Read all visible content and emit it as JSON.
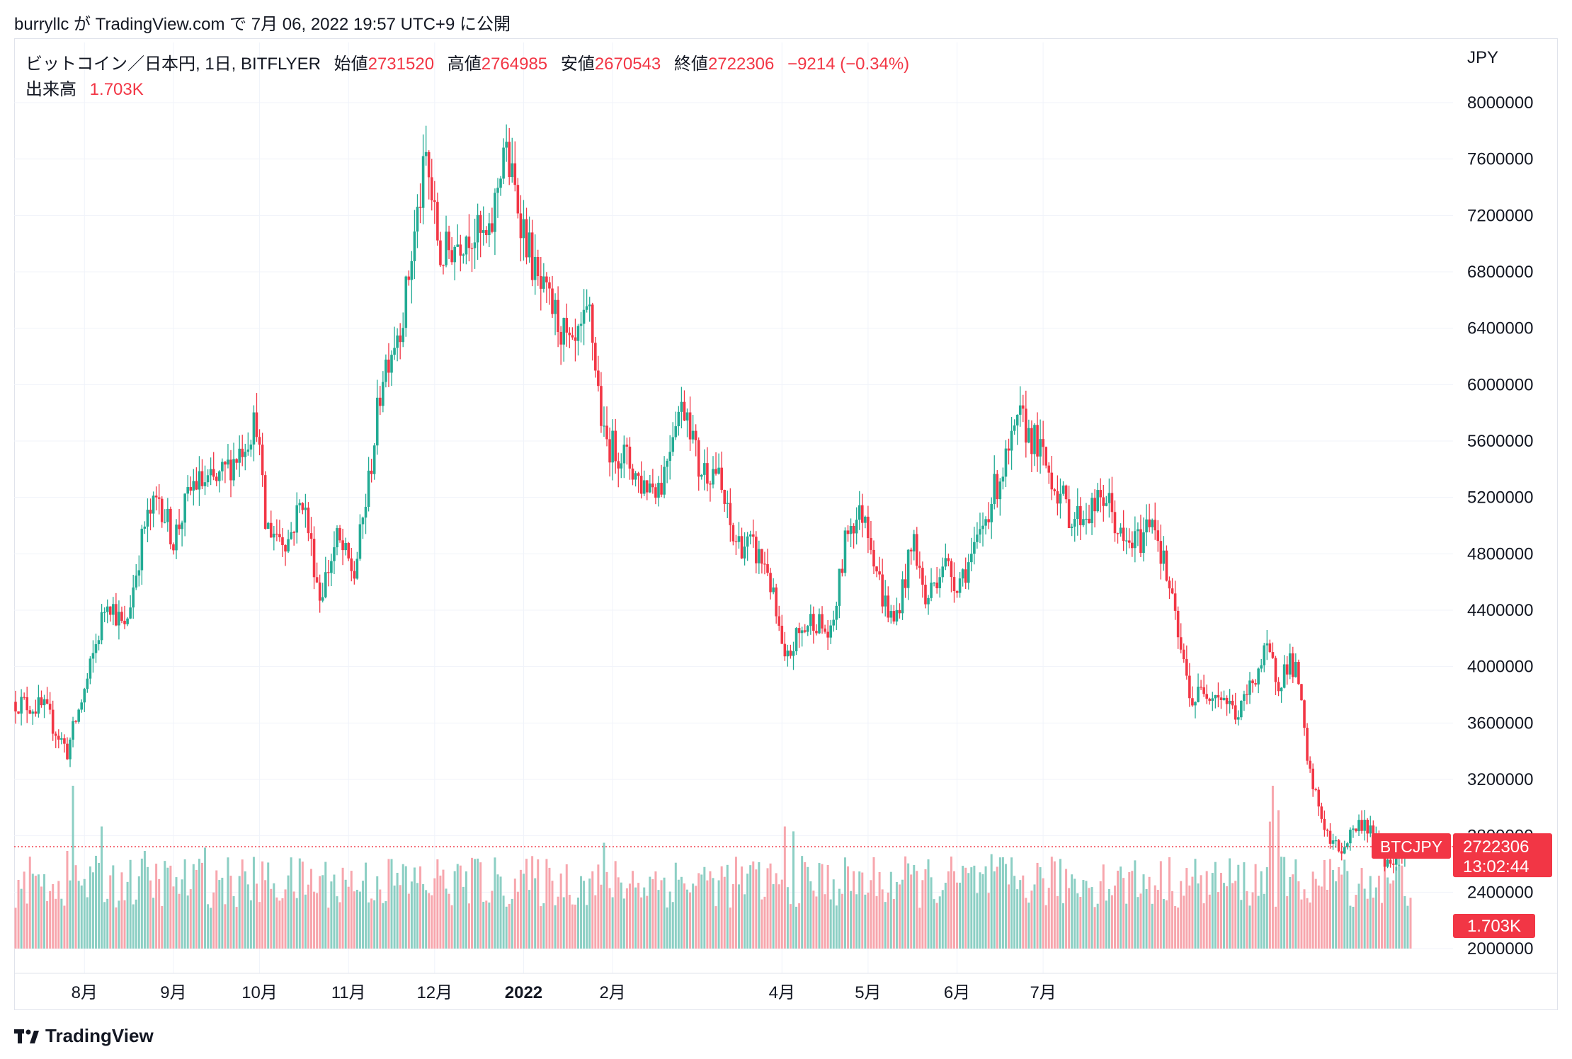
{
  "caption": "burryllc が TradingView.com で 7月 06, 2022 19:57 UTC+9 に公開",
  "legend": {
    "symbol": "ビットコイン／日本円, 1日, BITFLYER",
    "open_label": "始値",
    "open": "2731520",
    "high_label": "高値",
    "high": "2764985",
    "low_label": "安値",
    "low": "2670543",
    "close_label": "終値",
    "close": "2722306",
    "change": "−9214 (−0.34%)",
    "volume_label": "出来高",
    "volume": "1.703K"
  },
  "currency": "JPY",
  "price_tag": {
    "symbol": "BTCJPY",
    "price": "2722306",
    "countdown": "13:02:44"
  },
  "volume_tag": "1.703K",
  "footer_brand": "TradingView",
  "colors": {
    "up": "#22ab94",
    "down": "#f23645",
    "up_volume": "#8ccfc4",
    "down_volume": "#f7a6ad",
    "grid": "#f0f3fa"
  },
  "chart_data": {
    "type": "candlestick",
    "title": "ビットコイン／日本円, 1日, BITFLYER",
    "y_axis": {
      "unit": "JPY",
      "ylim": [
        1900000,
        8200000
      ],
      "ticks": [
        "8000000",
        "7600000",
        "7200000",
        "6800000",
        "6400000",
        "6000000",
        "5600000",
        "5200000",
        "4800000",
        "4400000",
        "4000000",
        "3600000",
        "3200000",
        "2800000",
        "2400000",
        "2000000"
      ]
    },
    "x_axis": {
      "ticks": [
        "8月",
        "9月",
        "10月",
        "11月",
        "12月",
        "2022",
        "2月",
        "4月",
        "5月",
        "6月",
        "7月"
      ]
    },
    "last_price": 2722306,
    "close_path": [
      {
        "d": 0,
        "close": 3750000
      },
      {
        "d": 10,
        "close": 3700000
      },
      {
        "d": 18,
        "close": 3400000
      },
      {
        "d": 25,
        "close": 3900000
      },
      {
        "d": 32,
        "close": 4500000
      },
      {
        "d": 38,
        "close": 4250000
      },
      {
        "d": 45,
        "close": 5000000
      },
      {
        "d": 50,
        "close": 5200000
      },
      {
        "d": 55,
        "close": 4900000
      },
      {
        "d": 62,
        "close": 5300000
      },
      {
        "d": 70,
        "close": 5300000
      },
      {
        "d": 77,
        "close": 5500000
      },
      {
        "d": 84,
        "close": 5750000
      },
      {
        "d": 87,
        "close": 5000000
      },
      {
        "d": 95,
        "close": 4900000
      },
      {
        "d": 100,
        "close": 5200000
      },
      {
        "d": 106,
        "close": 4500000
      },
      {
        "d": 112,
        "close": 4900000
      },
      {
        "d": 118,
        "close": 4650000
      },
      {
        "d": 123,
        "close": 5300000
      },
      {
        "d": 128,
        "close": 6100000
      },
      {
        "d": 135,
        "close": 6500000
      },
      {
        "d": 140,
        "close": 7200000
      },
      {
        "d": 143,
        "close": 7600000
      },
      {
        "d": 148,
        "close": 6900000
      },
      {
        "d": 153,
        "close": 7000000
      },
      {
        "d": 158,
        "close": 7100000
      },
      {
        "d": 165,
        "close": 7000000
      },
      {
        "d": 170,
        "close": 7700000
      },
      {
        "d": 176,
        "close": 7200000
      },
      {
        "d": 182,
        "close": 6700000
      },
      {
        "d": 188,
        "close": 6500000
      },
      {
        "d": 194,
        "close": 6200000
      },
      {
        "d": 200,
        "close": 6500000
      },
      {
        "d": 205,
        "close": 5600000
      },
      {
        "d": 212,
        "close": 5500000
      },
      {
        "d": 218,
        "close": 5300000
      },
      {
        "d": 225,
        "close": 5300000
      },
      {
        "d": 230,
        "close": 5800000
      },
      {
        "d": 234,
        "close": 5850000
      },
      {
        "d": 238,
        "close": 5400000
      },
      {
        "d": 244,
        "close": 5400000
      },
      {
        "d": 250,
        "close": 4900000
      },
      {
        "d": 256,
        "close": 4850000
      },
      {
        "d": 262,
        "close": 4700000
      },
      {
        "d": 268,
        "close": 4000000
      },
      {
        "d": 272,
        "close": 4200000
      },
      {
        "d": 278,
        "close": 4350000
      },
      {
        "d": 284,
        "close": 4200000
      },
      {
        "d": 290,
        "close": 5000000
      },
      {
        "d": 296,
        "close": 5100000
      },
      {
        "d": 302,
        "close": 4500000
      },
      {
        "d": 306,
        "close": 4300000
      },
      {
        "d": 313,
        "close": 4900000
      },
      {
        "d": 317,
        "close": 4450000
      },
      {
        "d": 323,
        "close": 4750000
      },
      {
        "d": 328,
        "close": 4600000
      },
      {
        "d": 334,
        "close": 4800000
      },
      {
        "d": 340,
        "close": 5200000
      },
      {
        "d": 346,
        "close": 5500000
      },
      {
        "d": 350,
        "close": 5750000
      },
      {
        "d": 355,
        "close": 5600000
      },
      {
        "d": 362,
        "close": 5300000
      },
      {
        "d": 368,
        "close": 5050000
      },
      {
        "d": 374,
        "close": 5100000
      },
      {
        "d": 380,
        "close": 5200000
      },
      {
        "d": 386,
        "close": 4850000
      },
      {
        "d": 392,
        "close": 4900000
      },
      {
        "d": 396,
        "close": 5100000
      },
      {
        "d": 402,
        "close": 4550000
      },
      {
        "d": 406,
        "close": 4100000
      },
      {
        "d": 410,
        "close": 3750000
      },
      {
        "d": 414,
        "close": 3850000
      },
      {
        "d": 420,
        "close": 3800000
      },
      {
        "d": 426,
        "close": 3650000
      },
      {
        "d": 432,
        "close": 3950000
      },
      {
        "d": 436,
        "close": 4100000
      },
      {
        "d": 440,
        "close": 3900000
      },
      {
        "d": 444,
        "close": 4050000
      },
      {
        "d": 447,
        "close": 3900000
      },
      {
        "d": 450,
        "close": 3300000
      },
      {
        "d": 454,
        "close": 3000000
      },
      {
        "d": 458,
        "close": 2750000
      },
      {
        "d": 462,
        "close": 2700000
      },
      {
        "d": 466,
        "close": 2850000
      },
      {
        "d": 470,
        "close": 2900000
      },
      {
        "d": 474,
        "close": 2750000
      },
      {
        "d": 478,
        "close": 2600000
      },
      {
        "d": 482,
        "close": 2700000
      },
      {
        "d": 486,
        "close": 2722306
      }
    ],
    "volume_note": "daily volume bars at bottom, latest 1.703K"
  }
}
